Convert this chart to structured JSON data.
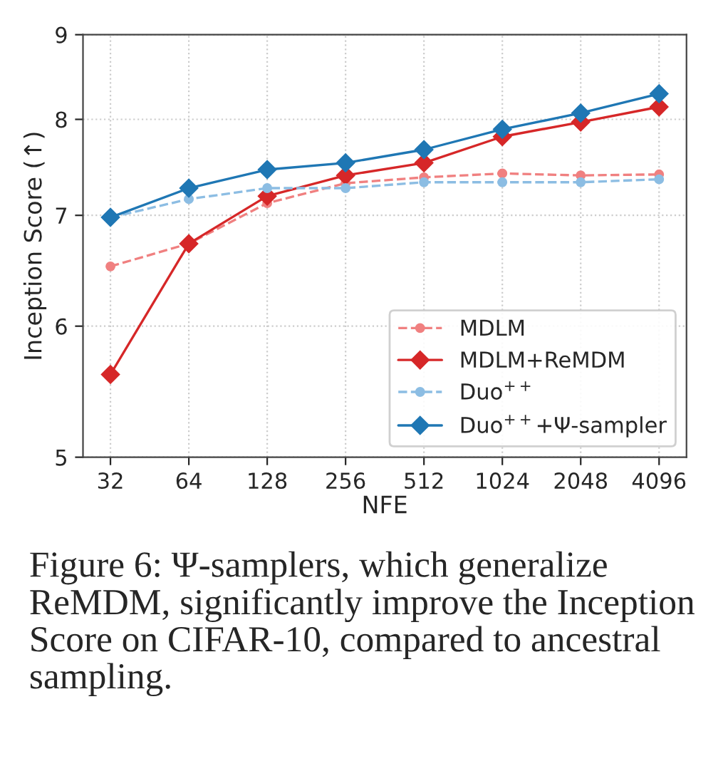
{
  "chart_data": {
    "type": "line",
    "xlabel": "NFE",
    "ylabel": "Inception Score (↑)",
    "x": [
      32,
      64,
      128,
      256,
      512,
      1024,
      2048,
      4096
    ],
    "series": [
      {
        "name": "MDLM",
        "color": "#f08080",
        "line_style": "dashed",
        "marker": "circle",
        "values": [
          6.52,
          6.73,
          7.12,
          7.32,
          7.38,
          7.42,
          7.4,
          7.41
        ]
      },
      {
        "name": "MDLM+ReMDM",
        "color": "#d62728",
        "line_style": "solid",
        "marker": "diamond",
        "values": [
          5.61,
          6.73,
          7.19,
          7.4,
          7.53,
          7.81,
          7.97,
          8.14
        ]
      },
      {
        "name": "Duo$^{++}$",
        "color": "#8cbde3",
        "line_style": "dashed",
        "marker": "circle",
        "values": [
          6.98,
          7.16,
          7.27,
          7.27,
          7.33,
          7.33,
          7.33,
          7.36
        ]
      },
      {
        "name": "Duo$^{++}$+Ψ-sampler",
        "color": "#1f77b4",
        "line_style": "solid",
        "marker": "diamond",
        "values": [
          6.98,
          7.27,
          7.46,
          7.53,
          7.67,
          7.89,
          8.07,
          8.29
        ]
      }
    ],
    "log": "xy",
    "xlim": [
      25.1,
      5220
    ],
    "xticks": [
      32,
      64,
      128,
      256,
      512,
      1024,
      2048,
      4096
    ],
    "ylim": [
      5,
      9
    ],
    "yticks": [
      5,
      6,
      7,
      8,
      9
    ],
    "grid": true,
    "legend": "bottom right",
    "annotations": [
      "Figure 6: Ψ-samplers, which generalize ReMDM, significantly improve the Inception Score on CIFAR-10, compared to ancestral sampling."
    ]
  }
}
